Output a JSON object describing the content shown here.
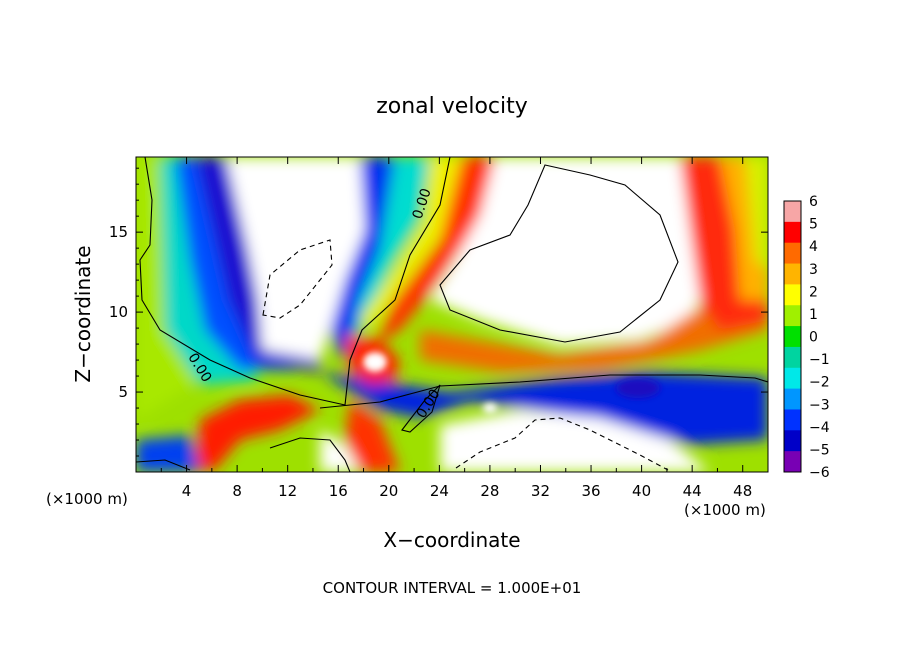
{
  "chart_data": {
    "type": "heatmap",
    "title": "zonal velocity",
    "xlabel": "X−coordinate",
    "ylabel": "Z−coordinate",
    "x_unit_label": "(×1000 m)",
    "y_unit_label": "(×1000 m)",
    "footer": "CONTOUR INTERVAL = 1.000E+01",
    "xlim": [
      0,
      50
    ],
    "ylim": [
      0,
      19.7
    ],
    "x_ticks": [
      4,
      8,
      12,
      16,
      20,
      24,
      28,
      32,
      36,
      40,
      44,
      48
    ],
    "x_tick_labels": [
      "4",
      "8",
      "12",
      "16",
      "20",
      "24",
      "28",
      "32",
      "36",
      "40",
      "44",
      "48"
    ],
    "y_ticks": [
      5,
      10,
      15
    ],
    "y_tick_labels": [
      "5",
      "10",
      "15"
    ],
    "colorbar": {
      "min": -6,
      "max": 6,
      "labels": [
        "6",
        "5",
        "4",
        "3",
        "2",
        "1",
        "0",
        "−1",
        "−2",
        "−3",
        "−4",
        "−5",
        "−6"
      ],
      "values": [
        6,
        5,
        4,
        3,
        2,
        1,
        0,
        -1,
        -2,
        -3,
        -4,
        -5,
        -6
      ],
      "colors": [
        "#f7a6a6",
        "#ff0000",
        "#ff6a00",
        "#ffb400",
        "#ffff00",
        "#a0f000",
        "#00e000",
        "#00d4a0",
        "#00e8e8",
        "#0096ff",
        "#0032ff",
        "#0000c8",
        "#7800b4"
      ]
    },
    "contour_labels": [
      "0.00",
      "0.00",
      "0.00"
    ]
  }
}
